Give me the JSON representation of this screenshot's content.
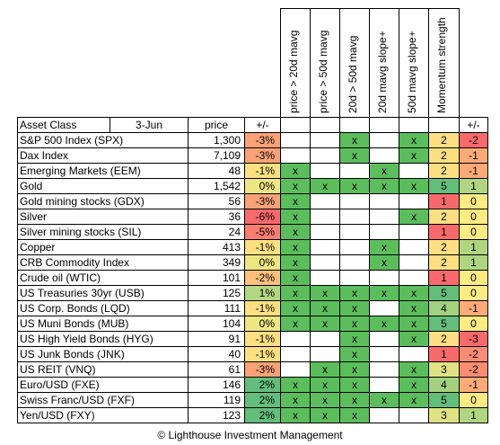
{
  "header": {
    "col_asset": "Asset Class",
    "date": "3-Jun",
    "col_price": "price",
    "col_change": "+/-",
    "indicators": [
      "price > 20d mavg",
      "price > 50d mavg",
      "20d > 50d mavg",
      "20d mavg slope+",
      "50d mavg slope+"
    ],
    "col_momentum": "Momentum strength",
    "col_mom_change": "+/-"
  },
  "colors": {
    "indicator_green": "#5cbd5c",
    "change_scale": [
      "#f8696b",
      "#ffeb84",
      "#63be7b"
    ],
    "momentum_scale": [
      "#f8696b",
      "#ffeb84",
      "#63be7b"
    ]
  },
  "rows": [
    {
      "name": "S&P 500 Index (SPX)",
      "price": "1,300",
      "change": "-3%",
      "flags": [
        0,
        0,
        1,
        0,
        1
      ],
      "mom": "2",
      "mom_change": "-2",
      "change_color": "#f9a277",
      "mom_color": "#fedf83",
      "mc_color": "#f8696b"
    },
    {
      "name": "Dax Index",
      "price": "7,109",
      "change": "-3%",
      "flags": [
        0,
        0,
        1,
        0,
        1
      ],
      "mom": "2",
      "mom_change": "-1",
      "change_color": "#f9a277",
      "mom_color": "#fedf83",
      "mc_color": "#fcaa77"
    },
    {
      "name": "Emerging Markets (EEM)",
      "price": "48",
      "change": "-1%",
      "flags": [
        1,
        0,
        0,
        1,
        0
      ],
      "mom": "2",
      "mom_change": "-1",
      "change_color": "#fee082",
      "mom_color": "#fedf83",
      "mc_color": "#fcaa77"
    },
    {
      "name": "Gold",
      "price": "1,542",
      "change": "0%",
      "flags": [
        1,
        1,
        1,
        1,
        1
      ],
      "mom": "5",
      "mom_change": "1",
      "change_color": "#eee683",
      "mom_color": "#63be7b",
      "mc_color": "#b0d580"
    },
    {
      "name": "Gold mining stocks (GDX)",
      "price": "56",
      "change": "-3%",
      "flags": [
        1,
        0,
        0,
        0,
        0
      ],
      "mom": "1",
      "mom_change": "0",
      "change_color": "#f9a277",
      "mom_color": "#f8696b",
      "mc_color": "#ffeb84"
    },
    {
      "name": "Silver",
      "price": "36",
      "change": "-6%",
      "flags": [
        1,
        0,
        0,
        0,
        1
      ],
      "mom": "2",
      "mom_change": "0",
      "change_color": "#f8696b",
      "mom_color": "#fedf83",
      "mc_color": "#ffeb84"
    },
    {
      "name": "Silver mining stocks (SIL)",
      "price": "24",
      "change": "-5%",
      "flags": [
        1,
        0,
        0,
        0,
        0
      ],
      "mom": "1",
      "mom_change": "0",
      "change_color": "#f87d6e",
      "mom_color": "#f8696b",
      "mc_color": "#ffeb84"
    },
    {
      "name": "Copper",
      "price": "413",
      "change": "-1%",
      "flags": [
        1,
        0,
        0,
        1,
        0
      ],
      "mom": "2",
      "mom_change": "1",
      "change_color": "#fee082",
      "mom_color": "#fedf83",
      "mc_color": "#b0d580"
    },
    {
      "name": "CRB Commodity Index",
      "price": "349",
      "change": "0%",
      "flags": [
        1,
        0,
        0,
        1,
        0
      ],
      "mom": "2",
      "mom_change": "1",
      "change_color": "#eee683",
      "mom_color": "#fedf83",
      "mc_color": "#b0d580"
    },
    {
      "name": "Crude oil (WTIC)",
      "price": "101",
      "change": "-2%",
      "flags": [
        1,
        0,
        0,
        0,
        0
      ],
      "mom": "1",
      "mom_change": "0",
      "change_color": "#fcc07c",
      "mom_color": "#f8696b",
      "mc_color": "#ffeb84"
    },
    {
      "name": "US Treasuries 30yr (USB)",
      "price": "125",
      "change": "1%",
      "flags": [
        1,
        1,
        1,
        1,
        1
      ],
      "mom": "5",
      "mom_change": "0",
      "change_color": "#b3d780",
      "mom_color": "#63be7b",
      "mc_color": "#ffeb84"
    },
    {
      "name": "US Corp. Bonds (LQD)",
      "price": "111",
      "change": "-1%",
      "flags": [
        1,
        1,
        1,
        0,
        1
      ],
      "mom": "4",
      "mom_change": "-1",
      "change_color": "#fee082",
      "mom_color": "#a3d17f",
      "mc_color": "#fcaa77"
    },
    {
      "name": "US Muni Bonds (MUB)",
      "price": "104",
      "change": "0%",
      "flags": [
        1,
        1,
        1,
        1,
        1
      ],
      "mom": "5",
      "mom_change": "0",
      "change_color": "#eee683",
      "mom_color": "#63be7b",
      "mc_color": "#ffeb84"
    },
    {
      "name": "US High Yield Bonds (HYG)",
      "price": "91",
      "change": "-1%",
      "flags": [
        0,
        0,
        1,
        0,
        1
      ],
      "mom": "2",
      "mom_change": "-3",
      "change_color": "#fee082",
      "mom_color": "#fedf83",
      "mc_color": "#f8696b"
    },
    {
      "name": "US Junk Bonds (JNK)",
      "price": "40",
      "change": "-1%",
      "flags": [
        0,
        0,
        1,
        0,
        0
      ],
      "mom": "1",
      "mom_change": "-2",
      "change_color": "#fee082",
      "mom_color": "#f8696b",
      "mc_color": "#f98c72"
    },
    {
      "name": "US REIT (VNQ)",
      "price": "61",
      "change": "-3%",
      "flags": [
        0,
        1,
        1,
        0,
        1
      ],
      "mom": "3",
      "mom_change": "-2",
      "change_color": "#f9a277",
      "mom_color": "#e0e383",
      "mc_color": "#f98c72"
    },
    {
      "name": "Euro/USD (FXE)",
      "price": "146",
      "change": "2%",
      "flags": [
        1,
        1,
        1,
        0,
        1
      ],
      "mom": "4",
      "mom_change": "-1",
      "change_color": "#63be7b",
      "mom_color": "#a3d17f",
      "mc_color": "#fcaa77"
    },
    {
      "name": "Swiss Franc/USD (FXF)",
      "price": "119",
      "change": "2%",
      "flags": [
        1,
        1,
        1,
        1,
        1
      ],
      "mom": "5",
      "mom_change": "0",
      "change_color": "#63be7b",
      "mom_color": "#63be7b",
      "mc_color": "#ffeb84"
    },
    {
      "name": "Yen/USD (FXY)",
      "price": "123",
      "change": "2%",
      "flags": [
        1,
        1,
        1,
        0,
        0
      ],
      "mom": "3",
      "mom_change": "1",
      "change_color": "#63be7b",
      "mom_color": "#e0e383",
      "mc_color": "#b0d580"
    }
  ],
  "mark": "x",
  "footer": "© Lighthouse Investment Management"
}
